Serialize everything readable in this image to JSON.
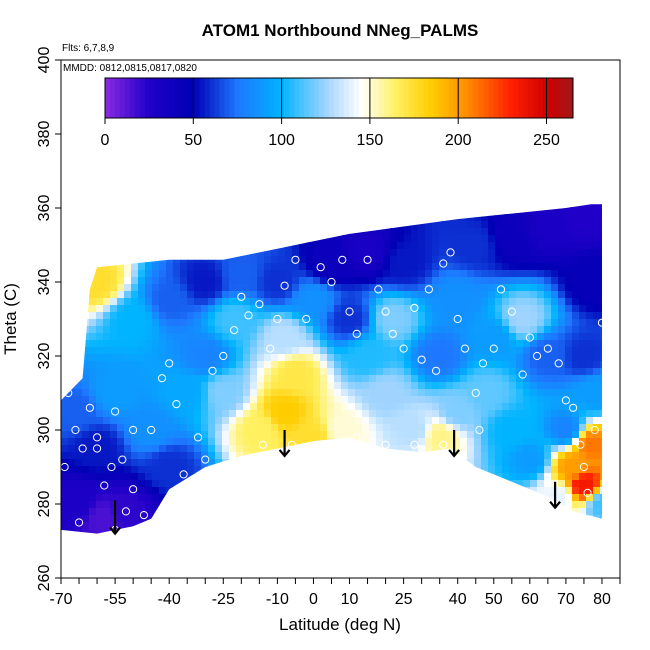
{
  "chart_data": {
    "type": "heatmap",
    "title": "ATOM1 Northbound NNeg_PALMS",
    "annotations": [
      "Flts: 6,7,8,9",
      "MMDD: 0812,0815,0817,0820"
    ],
    "xlabel": "Latitude (deg N)",
    "ylabel": "Theta (C)",
    "xlim": [
      -70,
      85
    ],
    "ylim": [
      260,
      400
    ],
    "x_ticks": [
      -70,
      -55,
      -40,
      -25,
      -10,
      0,
      10,
      25,
      40,
      50,
      60,
      70,
      80
    ],
    "x_tick_labels": [
      "-70",
      "-55",
      "-40",
      "-25",
      "-10",
      "0",
      "10",
      "25",
      "40",
      "50",
      "60",
      "70",
      "80"
    ],
    "x_minor_step": 5,
    "y_ticks": [
      260,
      280,
      300,
      320,
      340,
      360,
      380,
      400
    ],
    "y_tick_labels": [
      "260",
      "280",
      "300",
      "320",
      "340",
      "360",
      "380",
      "400"
    ],
    "colorbar": {
      "range": [
        0,
        265
      ],
      "ticks": [
        0,
        50,
        100,
        150,
        200,
        250
      ],
      "tick_labels": [
        "0",
        "50",
        "100",
        "150",
        "200",
        "250"
      ],
      "stops": [
        {
          "v": 0,
          "c": "#8a2be2"
        },
        {
          "v": 25,
          "c": "#2000c8"
        },
        {
          "v": 50,
          "c": "#0000b4"
        },
        {
          "v": 75,
          "c": "#1e78ff"
        },
        {
          "v": 100,
          "c": "#00b4ff"
        },
        {
          "v": 125,
          "c": "#a0d4ff"
        },
        {
          "v": 145,
          "c": "#ffffff"
        },
        {
          "v": 165,
          "c": "#fff060"
        },
        {
          "v": 185,
          "c": "#ffcc00"
        },
        {
          "v": 205,
          "c": "#ff8c00"
        },
        {
          "v": 230,
          "c": "#ff2000"
        },
        {
          "v": 250,
          "c": "#d00000"
        },
        {
          "v": 265,
          "c": "#a01818"
        }
      ]
    },
    "domain_top": [
      [
        -70,
        308
      ],
      [
        -64,
        314
      ],
      [
        -62,
        338
      ],
      [
        -60,
        344
      ],
      [
        -50,
        345
      ],
      [
        -40,
        346
      ],
      [
        -25,
        346
      ],
      [
        -10,
        349
      ],
      [
        0,
        351
      ],
      [
        10,
        353
      ],
      [
        25,
        355
      ],
      [
        40,
        357
      ],
      [
        50,
        358
      ],
      [
        60,
        359
      ],
      [
        70,
        360
      ],
      [
        77,
        361
      ],
      [
        80,
        361
      ]
    ],
    "domain_bottom": [
      [
        -70,
        273
      ],
      [
        -60,
        272
      ],
      [
        -50,
        274
      ],
      [
        -45,
        276
      ],
      [
        -40,
        284
      ],
      [
        -30,
        290
      ],
      [
        -20,
        293
      ],
      [
        -10,
        295
      ],
      [
        0,
        297
      ],
      [
        10,
        298
      ],
      [
        20,
        295
      ],
      [
        30,
        294
      ],
      [
        38,
        295
      ],
      [
        45,
        290
      ],
      [
        55,
        286
      ],
      [
        65,
        282
      ],
      [
        72,
        278
      ],
      [
        80,
        276
      ]
    ],
    "value_field": [
      {
        "x": -66,
        "y": 280,
        "v": 28
      },
      {
        "x": -58,
        "y": 276,
        "v": 15
      },
      {
        "x": -52,
        "y": 278,
        "v": 22
      },
      {
        "x": -60,
        "y": 295,
        "v": 55
      },
      {
        "x": -66,
        "y": 305,
        "v": 70
      },
      {
        "x": -55,
        "y": 310,
        "v": 90
      },
      {
        "x": -45,
        "y": 300,
        "v": 85
      },
      {
        "x": -40,
        "y": 290,
        "v": 60
      },
      {
        "x": -35,
        "y": 310,
        "v": 95
      },
      {
        "x": -30,
        "y": 320,
        "v": 80
      },
      {
        "x": -22,
        "y": 330,
        "v": 110
      },
      {
        "x": -60,
        "y": 340,
        "v": 175
      },
      {
        "x": -50,
        "y": 330,
        "v": 100
      },
      {
        "x": -40,
        "y": 335,
        "v": 70
      },
      {
        "x": -30,
        "y": 340,
        "v": 55
      },
      {
        "x": -20,
        "y": 342,
        "v": 70
      },
      {
        "x": -10,
        "y": 340,
        "v": 60
      },
      {
        "x": -25,
        "y": 310,
        "v": 120
      },
      {
        "x": -15,
        "y": 300,
        "v": 165
      },
      {
        "x": -8,
        "y": 305,
        "v": 185
      },
      {
        "x": -5,
        "y": 315,
        "v": 170
      },
      {
        "x": 0,
        "y": 298,
        "v": 175
      },
      {
        "x": 8,
        "y": 300,
        "v": 150
      },
      {
        "x": -8,
        "y": 325,
        "v": 130
      },
      {
        "x": 0,
        "y": 335,
        "v": 85
      },
      {
        "x": 10,
        "y": 330,
        "v": 60
      },
      {
        "x": 15,
        "y": 320,
        "v": 105
      },
      {
        "x": 5,
        "y": 345,
        "v": 40
      },
      {
        "x": 15,
        "y": 348,
        "v": 30
      },
      {
        "x": 25,
        "y": 345,
        "v": 55
      },
      {
        "x": 22,
        "y": 330,
        "v": 120
      },
      {
        "x": 20,
        "y": 310,
        "v": 125
      },
      {
        "x": 28,
        "y": 300,
        "v": 130
      },
      {
        "x": 35,
        "y": 298,
        "v": 160
      },
      {
        "x": 40,
        "y": 305,
        "v": 120
      },
      {
        "x": 35,
        "y": 320,
        "v": 75
      },
      {
        "x": 40,
        "y": 335,
        "v": 85
      },
      {
        "x": 45,
        "y": 350,
        "v": 60
      },
      {
        "x": 55,
        "y": 352,
        "v": 40
      },
      {
        "x": 65,
        "y": 355,
        "v": 30
      },
      {
        "x": 75,
        "y": 358,
        "v": 25
      },
      {
        "x": 50,
        "y": 325,
        "v": 90
      },
      {
        "x": 58,
        "y": 330,
        "v": 125
      },
      {
        "x": 65,
        "y": 320,
        "v": 70
      },
      {
        "x": 48,
        "y": 310,
        "v": 115
      },
      {
        "x": 55,
        "y": 300,
        "v": 100
      },
      {
        "x": 60,
        "y": 292,
        "v": 90
      },
      {
        "x": 70,
        "y": 300,
        "v": 80
      },
      {
        "x": 75,
        "y": 320,
        "v": 60
      },
      {
        "x": 78,
        "y": 340,
        "v": 45
      },
      {
        "x": 72,
        "y": 290,
        "v": 200
      },
      {
        "x": 75,
        "y": 285,
        "v": 235
      },
      {
        "x": 77,
        "y": 296,
        "v": 210
      },
      {
        "x": 80,
        "y": 280,
        "v": 110
      },
      {
        "x": 68,
        "y": 282,
        "v": 140
      },
      {
        "x": 78,
        "y": 310,
        "v": 90
      }
    ],
    "sample_points": [
      [
        -68,
        310
      ],
      [
        -66,
        300
      ],
      [
        -69,
        290
      ],
      [
        -64,
        295
      ],
      [
        -60,
        298
      ],
      [
        -62,
        306
      ],
      [
        -55,
        305
      ],
      [
        -53,
        292
      ],
      [
        -50,
        300
      ],
      [
        -58,
        285
      ],
      [
        -52,
        278
      ],
      [
        -47,
        277
      ],
      [
        -55,
        273
      ],
      [
        -65,
        275
      ],
      [
        -45,
        300
      ],
      [
        -42,
        314
      ],
      [
        -40,
        318
      ],
      [
        -38,
        307
      ],
      [
        -36,
        288
      ],
      [
        -30,
        292
      ],
      [
        -28,
        316
      ],
      [
        -25,
        320
      ],
      [
        -22,
        327
      ],
      [
        -20,
        336
      ],
      [
        -18,
        331
      ],
      [
        -15,
        334
      ],
      [
        -12,
        322
      ],
      [
        -10,
        330
      ],
      [
        -8,
        339
      ],
      [
        -5,
        346
      ],
      [
        -2,
        330
      ],
      [
        2,
        344
      ],
      [
        5,
        340
      ],
      [
        8,
        346
      ],
      [
        10,
        332
      ],
      [
        12,
        326
      ],
      [
        15,
        346
      ],
      [
        18,
        338
      ],
      [
        20,
        332
      ],
      [
        22,
        326
      ],
      [
        25,
        322
      ],
      [
        28,
        333
      ],
      [
        30,
        319
      ],
      [
        32,
        338
      ],
      [
        34,
        316
      ],
      [
        36,
        345
      ],
      [
        38,
        348
      ],
      [
        40,
        330
      ],
      [
        42,
        322
      ],
      [
        45,
        310
      ],
      [
        47,
        318
      ],
      [
        50,
        322
      ],
      [
        52,
        338
      ],
      [
        55,
        332
      ],
      [
        58,
        315
      ],
      [
        60,
        325
      ],
      [
        62,
        320
      ],
      [
        65,
        322
      ],
      [
        68,
        318
      ],
      [
        70,
        308
      ],
      [
        72,
        306
      ],
      [
        74,
        296
      ],
      [
        75,
        290
      ],
      [
        76,
        283
      ],
      [
        78,
        300
      ],
      [
        80,
        329
      ],
      [
        -32,
        298
      ],
      [
        -14,
        296
      ],
      [
        -6,
        296
      ],
      [
        4,
        296
      ],
      [
        12,
        298
      ],
      [
        20,
        296
      ],
      [
        28,
        296
      ],
      [
        36,
        296
      ],
      [
        46,
        300
      ],
      [
        -60,
        295
      ],
      [
        -56,
        290
      ],
      [
        -50,
        284
      ]
    ],
    "arrows": [
      {
        "x": -55,
        "y_top": 281,
        "y_tip": 272
      },
      {
        "x": -8,
        "y_top": 300,
        "y_tip": 293
      },
      {
        "x": 39,
        "y_top": 300,
        "y_tip": 293
      },
      {
        "x": 67,
        "y_top": 286,
        "y_tip": 279
      }
    ]
  }
}
